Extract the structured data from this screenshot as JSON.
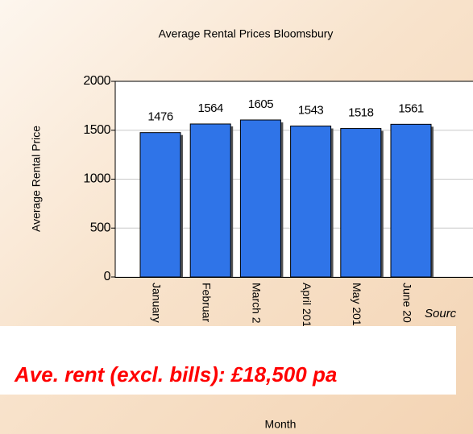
{
  "chart_data": {
    "type": "bar",
    "title": "Average Rental Prices Bloomsbury",
    "y_label": "Average Rental Price",
    "x_label": "Month",
    "categories": [
      "January",
      "Februar",
      "March 2",
      "April 201",
      "May 201",
      "June 20"
    ],
    "values": [
      1476,
      1564,
      1605,
      1543,
      1518,
      1561
    ],
    "color": "#2f74e8",
    "ylim": [
      0,
      2000
    ],
    "yticks": [
      0,
      500,
      1000,
      1500,
      2000
    ],
    "grid": true,
    "annotations": [
      "Sourc",
      "Ave. rent (excl. bills): £18,500 pa"
    ]
  }
}
